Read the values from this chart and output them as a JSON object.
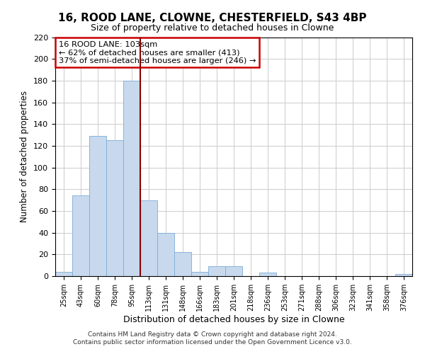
{
  "title": "16, ROOD LANE, CLOWNE, CHESTERFIELD, S43 4BP",
  "subtitle": "Size of property relative to detached houses in Clowne",
  "xlabel": "Distribution of detached houses by size in Clowne",
  "ylabel": "Number of detached properties",
  "bin_labels": [
    "25sqm",
    "43sqm",
    "60sqm",
    "78sqm",
    "95sqm",
    "113sqm",
    "131sqm",
    "148sqm",
    "166sqm",
    "183sqm",
    "201sqm",
    "218sqm",
    "236sqm",
    "253sqm",
    "271sqm",
    "288sqm",
    "306sqm",
    "323sqm",
    "341sqm",
    "358sqm",
    "376sqm"
  ],
  "bin_values": [
    4,
    74,
    129,
    125,
    180,
    70,
    40,
    22,
    4,
    9,
    9,
    0,
    3,
    0,
    0,
    0,
    0,
    0,
    0,
    0,
    2
  ],
  "bar_color": "#c8d9ee",
  "bar_edge_color": "#7aabd4",
  "ylim": [
    0,
    220
  ],
  "yticks": [
    0,
    20,
    40,
    60,
    80,
    100,
    120,
    140,
    160,
    180,
    200,
    220
  ],
  "annotation_title": "16 ROOD LANE: 103sqm",
  "annotation_line1": "← 62% of detached houses are smaller (413)",
  "annotation_line2": "37% of semi-detached houses are larger (246) →",
  "annotation_box_color": "#ffffff",
  "annotation_box_edge_color": "#cc0000",
  "footer_line1": "Contains HM Land Registry data © Crown copyright and database right 2024.",
  "footer_line2": "Contains public sector information licensed under the Open Government Licence v3.0.",
  "background_color": "#ffffff",
  "grid_color": "#cccccc",
  "property_line_color": "#8b0000"
}
